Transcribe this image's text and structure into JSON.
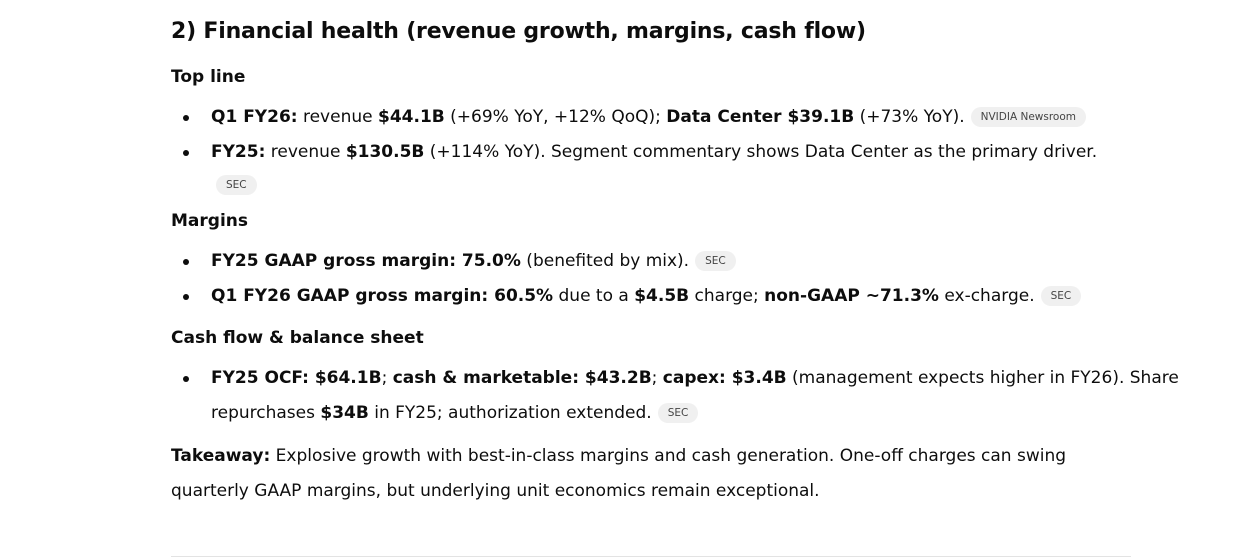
{
  "section_title": "2) Financial health (revenue growth, margins, cash flow)",
  "top_line": {
    "heading": "Top line",
    "items": [
      {
        "segments": [
          {
            "text": "Q1 FY26:",
            "bold": true
          },
          {
            "text": " revenue ",
            "bold": false
          },
          {
            "text": "$44.1B",
            "bold": true
          },
          {
            "text": " (+69% YoY, +12% QoQ); ",
            "bold": false
          },
          {
            "text": "Data Center $39.1B",
            "bold": true
          },
          {
            "text": " (+73% YoY).",
            "bold": false
          }
        ],
        "citation": "NVIDIA Newsroom"
      },
      {
        "segments": [
          {
            "text": "FY25:",
            "bold": true
          },
          {
            "text": " revenue ",
            "bold": false
          },
          {
            "text": "$130.5B",
            "bold": true
          },
          {
            "text": " (+114% YoY). Segment commentary shows Data Center as the primary driver.",
            "bold": false
          }
        ],
        "citation": "SEC"
      }
    ]
  },
  "margins": {
    "heading": "Margins",
    "items": [
      {
        "segments": [
          {
            "text": "FY25 GAAP gross margin: 75.0%",
            "bold": true
          },
          {
            "text": " (benefited by mix).",
            "bold": false
          }
        ],
        "citation": "SEC"
      },
      {
        "segments": [
          {
            "text": "Q1 FY26 GAAP gross margin: 60.5%",
            "bold": true
          },
          {
            "text": " due to a ",
            "bold": false
          },
          {
            "text": "$4.5B",
            "bold": true
          },
          {
            "text": " charge; ",
            "bold": false
          },
          {
            "text": "non-GAAP ~71.3%",
            "bold": true
          },
          {
            "text": " ex-charge.",
            "bold": false
          }
        ],
        "citation": "SEC"
      }
    ]
  },
  "cash_flow": {
    "heading": "Cash flow & balance sheet",
    "items": [
      {
        "segments": [
          {
            "text": "FY25 OCF: $64.1B",
            "bold": true
          },
          {
            "text": "; ",
            "bold": false
          },
          {
            "text": "cash & marketable: $43.2B",
            "bold": true
          },
          {
            "text": "; ",
            "bold": false
          },
          {
            "text": "capex: $3.4B",
            "bold": true
          },
          {
            "text": " (management expects higher in FY26). Share repurchases ",
            "bold": false
          },
          {
            "text": "$34B",
            "bold": true
          },
          {
            "text": " in FY25; authorization extended.",
            "bold": false
          }
        ],
        "citation": "SEC"
      }
    ]
  },
  "takeaway": {
    "label": "Takeaway:",
    "text": " Explosive growth with best-in-class margins and cash generation. One-off charges can swing quarterly GAAP margins, but underlying unit economics remain exceptional."
  }
}
